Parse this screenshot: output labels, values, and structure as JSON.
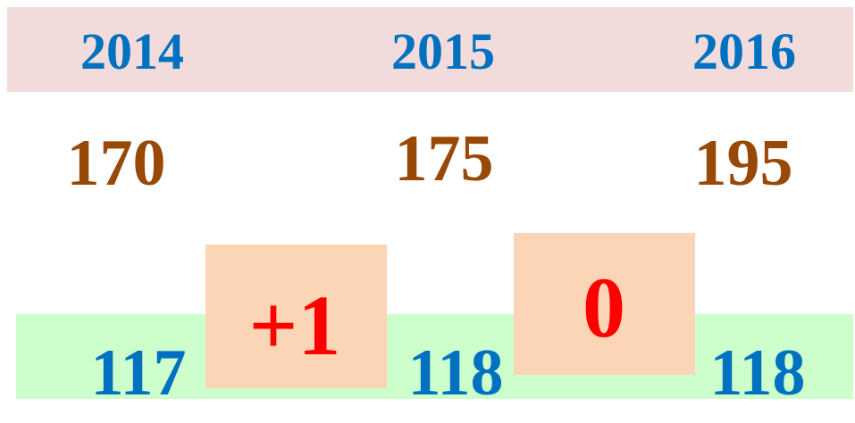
{
  "years": [
    "2014",
    "2015",
    "2016"
  ],
  "totals": [
    170,
    175,
    195
  ],
  "counts": [
    117,
    118,
    118
  ],
  "changes": [
    "+1",
    "0"
  ]
}
